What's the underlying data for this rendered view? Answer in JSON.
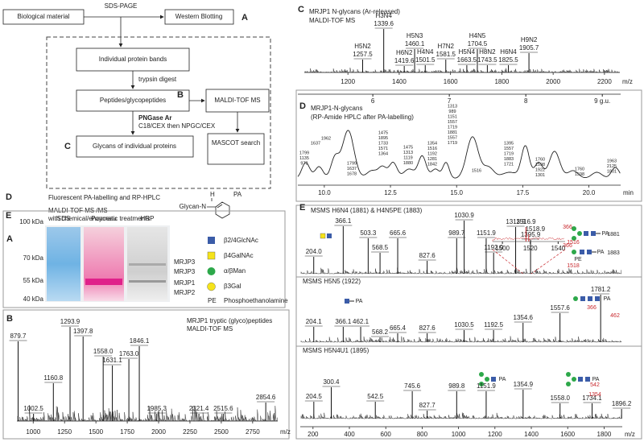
{
  "flowchart": {
    "nodes": [
      "Biological material",
      "Western Blotting",
      "Individual protein bands",
      "Peptides/glycopeptides",
      "MALDI-TOF MS",
      "Glycans of individual proteins",
      "MASCOT search"
    ],
    "edges": [
      "SDS-PAGE",
      "trypsin digest",
      "PNGase Ar",
      "C18/CEX then NPGC/CEX"
    ],
    "letters": [
      "A",
      "B",
      "C"
    ],
    "steps": [
      {
        "letter": "D",
        "text": "Fluorescent PA-labelling and RP-HPLC"
      },
      {
        "letter": "E",
        "text": "MALDI-TOF MS /MS",
        "sub": "with chemical/enzymatic treatments"
      }
    ],
    "structure": {
      "left": "Glycan-N",
      "h": "H",
      "tag": "PA"
    }
  },
  "gel": {
    "letter": "A",
    "markers": [
      "100 kDa",
      "70 kDa",
      "55 kDa",
      "40 kDa"
    ],
    "lanes": [
      "SDS",
      "Ponceau",
      "HRP"
    ],
    "bands": [
      "MRJP3",
      "MRJP3",
      "MRJP1",
      "MRJP2"
    ]
  },
  "legend": {
    "items": [
      "β2/4GlcNAc",
      "β4GalNAc",
      "α/βMan",
      "β3Gal"
    ],
    "abbr": "PE",
    "abbr_text": "Phosphoethanolamine"
  },
  "panel_b": {
    "letter": "B",
    "title": "MRJP1 tryptic (glyco)peptides",
    "subtitle": "MALDI-TOF MS",
    "xlim": [
      870,
      2950
    ],
    "xticks": [
      1000,
      1250,
      1500,
      1750,
      2000,
      2250,
      2500,
      2750
    ],
    "xlabel": "m/z",
    "peaks": [
      879.7,
      1002.5,
      1160.8,
      1293.9,
      1397.8,
      {
        "value": 1558.0,
        "label": "1558.0"
      },
      1631.1,
      {
        "value": 1763.0,
        "label": "1763.0"
      },
      1846.1,
      1985.3,
      2321.4,
      2515.6,
      2854.6
    ]
  },
  "panel_c": {
    "letter": "C",
    "title": "MRJP1 N-glycans (Ar-released)",
    "subtitle": "MALDI-TOF MS",
    "xlim": [
      1030,
      2260
    ],
    "xticks": [
      1200,
      1400,
      1600,
      1800,
      2000,
      2200
    ],
    "xlabel": "m/z",
    "peaks": [
      {
        "name": "H5N2",
        "mz": 1257.5
      },
      {
        "name": "H3N4",
        "mz": 1339.6
      },
      {
        "name": "H6N2",
        "mz": 1419.6
      },
      {
        "name": "H5N3",
        "mz": 1460.1
      },
      {
        "name": "H4N4",
        "mz": 1501.5
      },
      {
        "name": "H7N2",
        "mz": 1581.5
      },
      {
        "name": "H5N4",
        "mz": 1663.5
      },
      {
        "name": "H4N5",
        "mz": 1704.5
      },
      {
        "name": "H8N2",
        "mz": 1743.5
      },
      {
        "name": "H6N4",
        "mz": 1825.5
      },
      {
        "name": "H9N2",
        "mz": 1905.7
      }
    ]
  },
  "panel_d": {
    "letter": "D",
    "title": "MRJP1-N-glycans",
    "subtitle": "(RP-Amide HPLC after PA-labelling)",
    "gu_xlim": [
      5.02,
      9.24
    ],
    "gu_ticks": [
      6,
      7,
      8,
      {
        "value": 9,
        "label": "9 g.u."
      }
    ],
    "xlim": [
      9,
      21.2
    ],
    "xticks": [
      {
        "value": 10,
        "label": "10.0"
      },
      12.5,
      {
        "value": 15,
        "label": "15.0"
      },
      17.5,
      {
        "value": 20,
        "label": "20.0"
      }
    ],
    "xlabel": "min",
    "annotations": [
      [
        "1799",
        "1135",
        "973"
      ],
      [
        "1637"
      ],
      [
        "1962"
      ],
      [
        "1799",
        "1637",
        "1678"
      ],
      [
        "1475",
        "1895",
        "1733",
        "1571",
        "1364"
      ],
      [
        "1475",
        "1313",
        "1119",
        "1880"
      ],
      [
        "1354",
        "1516",
        "1192",
        "1281",
        "1842"
      ],
      [
        "1313",
        "989",
        "1151",
        "1557",
        "1719",
        "1881",
        "1557",
        "1719"
      ],
      [
        "1516"
      ],
      [
        "1395",
        "1557",
        "1719",
        "1883",
        "1721"
      ],
      [
        "1760",
        "1598",
        "1922",
        "1301"
      ],
      [
        "1760",
        "1598"
      ],
      [
        "1963",
        "2125",
        "1801"
      ]
    ]
  },
  "panel_e": {
    "letter": "E",
    "xlim": [
      130,
      1900
    ],
    "xticks": [
      200,
      400,
      600,
      800,
      1000,
      1200,
      1400,
      1600,
      1800
    ],
    "xlabel": "m/z",
    "spectra": [
      {
        "title": "MSMS H6N4 (1881) & H4N5PE (1883)",
        "peaks": [
          {
            "value": 204.0,
            "label": "204.0"
          },
          366.1,
          503.3,
          568.5,
          665.6,
          827.6,
          989.7,
          1030.9,
          1151.9,
          1192.9,
          1313.9,
          1395.9
        ],
        "annotations": [
          "1881",
          "1883",
          "366",
          "1516",
          "366",
          "PE",
          "1518",
          "PA",
          "PA"
        ]
      },
      {
        "title": "MSMS H5N5 (1922)",
        "peaks": [
          204.1,
          366.1,
          462.1,
          568.2,
          665.4,
          827.6,
          1030.5,
          1192.5,
          1354.6,
          1557.6,
          1781.2
        ],
        "annotations": [
          "366",
          "462",
          "PA",
          "PA"
        ]
      },
      {
        "title": "MSMS H5N4U1 (1895)",
        "peaks": [
          204.5,
          300.4,
          542.5,
          745.6,
          827.7,
          989.8,
          1151.9,
          1354.9,
          {
            "value": 1558.0,
            "label": "1558.0"
          },
          1734.1,
          1896.2
        ],
        "annotations": [
          "542",
          "1354",
          "PA",
          "PA"
        ]
      }
    ],
    "inset": {
      "xlim": [
        1493,
        1545
      ],
      "xticks": [
        1500,
        1520,
        1540
      ],
      "peaks": [
        1516.9,
        1518.9
      ]
    }
  }
}
